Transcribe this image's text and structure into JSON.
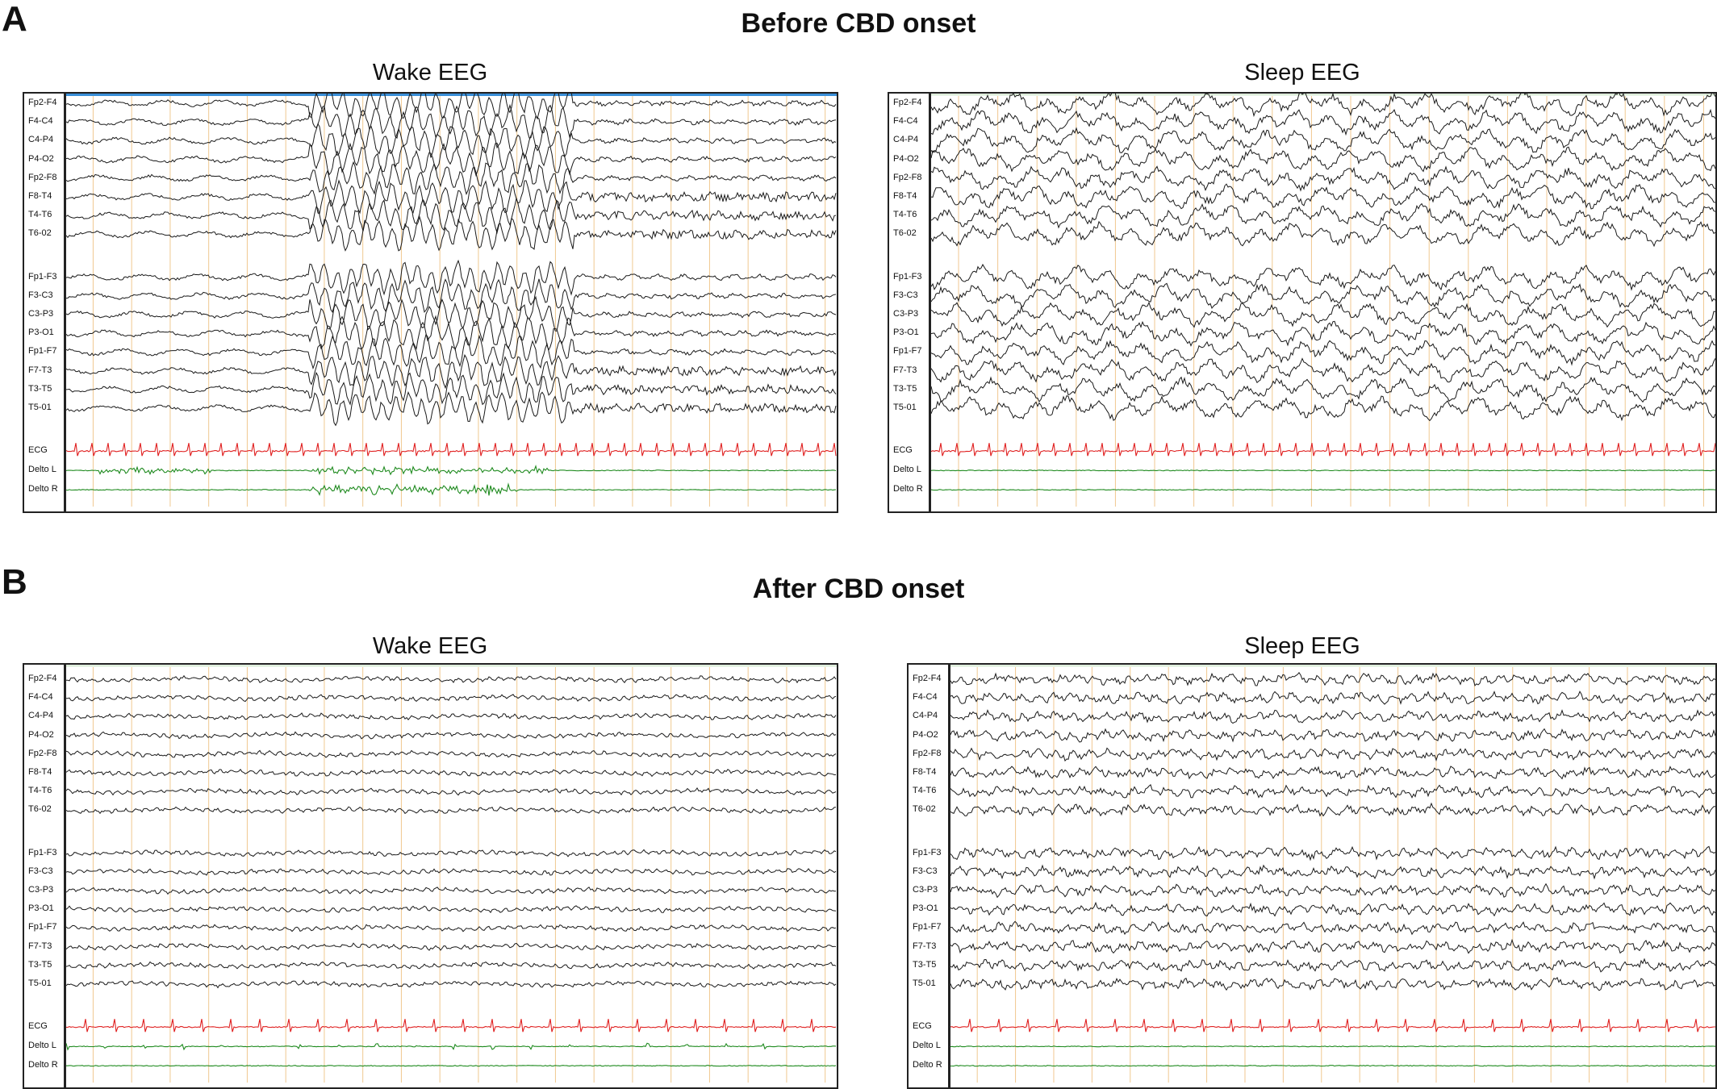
{
  "panels": [
    {
      "letter": "A",
      "title": "Before CBD onset",
      "recordings": [
        {
          "title": "Wake EEG",
          "state": "wake-before"
        },
        {
          "title": "Sleep EEG",
          "state": "sleep-before"
        }
      ]
    },
    {
      "letter": "B",
      "title": "After CBD onset",
      "recordings": [
        {
          "title": "Wake EEG",
          "state": "wake-after"
        },
        {
          "title": "Sleep EEG",
          "state": "sleep-after"
        }
      ]
    }
  ],
  "channels": {
    "right_hemisphere": [
      "Fp2-F4",
      "F4-C4",
      "C4-P4",
      "P4-O2",
      "Fp2-F8",
      "F8-T4",
      "T4-T6",
      "T6-02"
    ],
    "left_hemisphere": [
      "Fp1-F3",
      "F3-C3",
      "C3-P3",
      "P3-O1",
      "Fp1-F7",
      "F7-T3",
      "T3-T5",
      "T5-01"
    ],
    "polygraphy": [
      "ECG",
      "Delto L",
      "Delto R"
    ]
  },
  "colors": {
    "eeg_trace": "#1a1a1a",
    "ecg_trace": "#e02020",
    "emg_trace": "#1e8a1e",
    "second_markers": "#f0c890",
    "top_bar_before_wake": "#3a8fd8"
  }
}
